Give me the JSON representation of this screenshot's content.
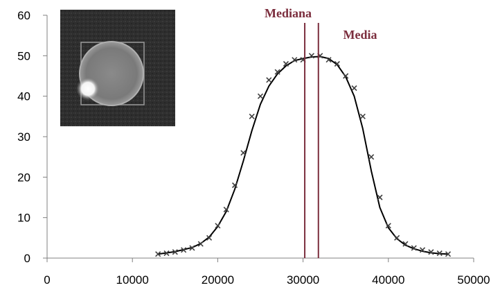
{
  "chart_data": {
    "type": "scatter",
    "title": "",
    "xlabel": "",
    "ylabel": "",
    "xlim": [
      0,
      50000
    ],
    "ylim": [
      0,
      60
    ],
    "x_ticks": [
      0,
      10000,
      20000,
      30000,
      40000,
      50000
    ],
    "y_ticks": [
      0,
      10,
      20,
      30,
      40,
      50,
      60
    ],
    "grid": false,
    "legend": "none",
    "series": [
      {
        "kind": "scatter",
        "marker": "x",
        "color": "#404040",
        "points": [
          [
            13000,
            1
          ],
          [
            14000,
            1.2
          ],
          [
            15000,
            1.5
          ],
          [
            16000,
            2
          ],
          [
            17000,
            2.5
          ],
          [
            18000,
            3.5
          ],
          [
            19000,
            5
          ],
          [
            20000,
            8
          ],
          [
            21000,
            12
          ],
          [
            22000,
            18
          ],
          [
            23000,
            26
          ],
          [
            24000,
            35
          ],
          [
            25000,
            40
          ],
          [
            26000,
            44
          ],
          [
            27000,
            46
          ],
          [
            28000,
            48
          ],
          [
            29000,
            49
          ],
          [
            30000,
            49
          ],
          [
            31000,
            50
          ],
          [
            32000,
            50
          ],
          [
            33000,
            49
          ],
          [
            34000,
            48
          ],
          [
            35000,
            45
          ],
          [
            36000,
            42
          ],
          [
            37000,
            35
          ],
          [
            38000,
            25
          ],
          [
            39000,
            15
          ],
          [
            40000,
            8
          ],
          [
            41000,
            5
          ],
          [
            42000,
            3.5
          ],
          [
            43000,
            2.5
          ],
          [
            44000,
            2
          ],
          [
            45000,
            1.5
          ],
          [
            46000,
            1.2
          ],
          [
            47000,
            1
          ]
        ]
      },
      {
        "kind": "line",
        "color": "#000000",
        "points": [
          [
            13000,
            1
          ],
          [
            15000,
            1.6
          ],
          [
            17000,
            2.6
          ],
          [
            18000,
            3.6
          ],
          [
            19000,
            5.2
          ],
          [
            20000,
            7.8
          ],
          [
            21000,
            11.5
          ],
          [
            22000,
            17
          ],
          [
            23000,
            24
          ],
          [
            24000,
            31.5
          ],
          [
            25000,
            38
          ],
          [
            26000,
            42.5
          ],
          [
            27000,
            45.5
          ],
          [
            28000,
            47.5
          ],
          [
            29000,
            48.8
          ],
          [
            30000,
            49.3
          ],
          [
            31000,
            49.7
          ],
          [
            32000,
            49.8
          ],
          [
            33000,
            49.3
          ],
          [
            34000,
            47.8
          ],
          [
            35000,
            44.8
          ],
          [
            36000,
            40
          ],
          [
            37000,
            32
          ],
          [
            38000,
            21.5
          ],
          [
            39000,
            12.5
          ],
          [
            40000,
            7.5
          ],
          [
            41000,
            4.8
          ],
          [
            42000,
            3.2
          ],
          [
            43000,
            2.3
          ],
          [
            44000,
            1.7
          ],
          [
            45000,
            1.3
          ],
          [
            46000,
            1.1
          ],
          [
            47000,
            1
          ]
        ]
      }
    ],
    "annotations": [
      {
        "label": "Mediana",
        "x": 30200,
        "color": "#7b2d3d"
      },
      {
        "label": "Media",
        "x": 31800,
        "color": "#7b2d3d"
      }
    ],
    "inset_image": "grayscale-bright-disk-with-glow"
  }
}
